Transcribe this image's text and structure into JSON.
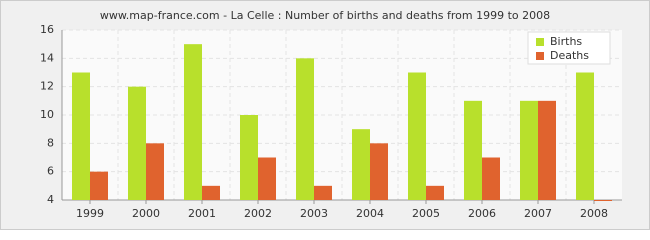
{
  "chart_data": {
    "type": "bar",
    "title": "www.map-france.com - La Celle : Number of births and deaths from 1999 to 2008",
    "categories": [
      "1999",
      "2000",
      "2001",
      "2002",
      "2003",
      "2004",
      "2005",
      "2006",
      "2007",
      "2008"
    ],
    "series": [
      {
        "name": "Births",
        "color": "#b8e02c",
        "values": [
          13,
          12,
          15,
          10,
          14,
          9,
          13,
          11,
          11,
          13
        ]
      },
      {
        "name": "Deaths",
        "color": "#e0632e",
        "values": [
          6,
          8,
          5,
          7,
          5,
          8,
          5,
          7,
          11,
          4
        ]
      }
    ],
    "ylim": [
      4,
      16
    ],
    "yticks": [
      4,
      6,
      8,
      10,
      12,
      14,
      16
    ],
    "grid": true,
    "legend": "top-right"
  }
}
